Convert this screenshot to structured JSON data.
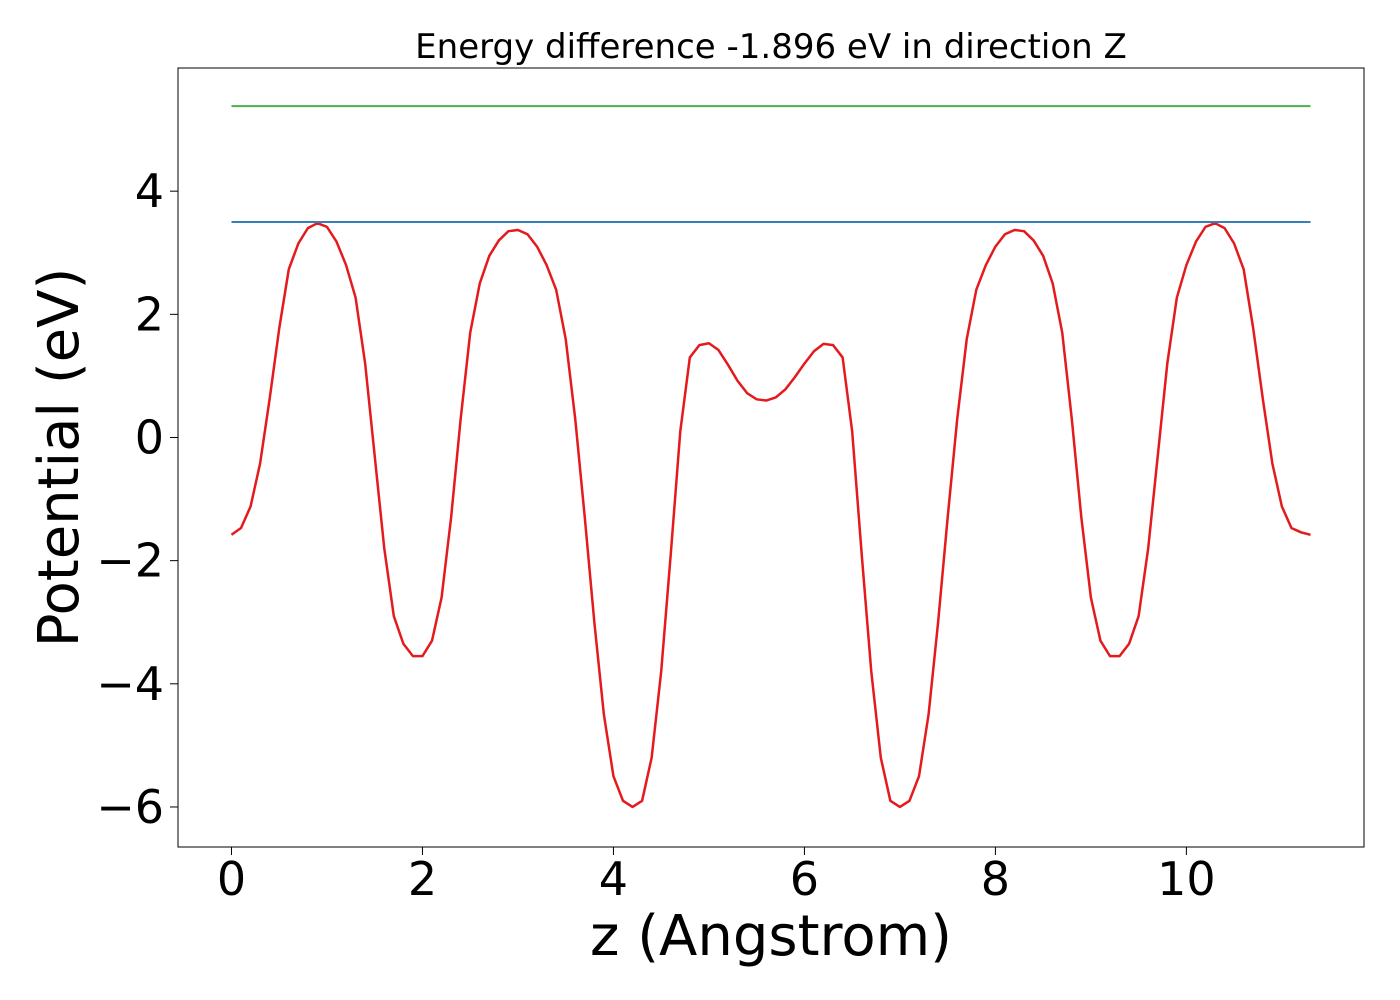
{
  "chart_data": {
    "type": "line",
    "title": "Energy difference -1.896 eV in direction Z",
    "xlabel": "z (Angstrom)",
    "ylabel": "Potential (eV)",
    "xlim": [
      -0.56,
      11.86
    ],
    "ylim": [
      -6.65,
      6.0
    ],
    "xticks": [
      0,
      2,
      4,
      6,
      8,
      10
    ],
    "yticks": [
      -6,
      -4,
      -2,
      0,
      2,
      4
    ],
    "xtick_labels": [
      "0",
      "2",
      "4",
      "6",
      "8",
      "10"
    ],
    "ytick_labels": [
      "−6",
      "−4",
      "−2",
      "0",
      "2",
      "4"
    ],
    "grid": false,
    "legend": "none",
    "series": [
      {
        "color": "#e41a1c",
        "x": [
          0.0,
          0.1,
          0.2,
          0.3,
          0.4,
          0.5,
          0.6,
          0.7,
          0.8,
          0.9,
          1.0,
          1.1,
          1.2,
          1.3,
          1.4,
          1.5,
          1.6,
          1.7,
          1.8,
          1.9,
          2.0,
          2.1,
          2.2,
          2.3,
          2.4,
          2.5,
          2.6,
          2.7,
          2.8,
          2.9,
          3.0,
          3.1,
          3.2,
          3.3,
          3.4,
          3.5,
          3.6,
          3.7,
          3.8,
          3.9,
          4.0,
          4.1,
          4.2,
          4.3,
          4.4,
          4.5,
          4.6,
          4.7,
          4.8,
          4.9,
          5.0,
          5.1,
          5.2,
          5.3,
          5.4,
          5.5,
          5.6,
          5.7,
          5.8,
          5.9,
          6.0,
          6.1,
          6.2,
          6.3,
          6.4,
          6.5,
          6.6,
          6.7,
          6.8,
          6.9,
          7.0,
          7.1,
          7.2,
          7.3,
          7.4,
          7.5,
          7.6,
          7.7,
          7.8,
          7.9,
          8.0,
          8.1,
          8.2,
          8.3,
          8.4,
          8.5,
          8.6,
          8.7,
          8.8,
          8.9,
          9.0,
          9.1,
          9.2,
          9.3,
          9.4,
          9.5,
          9.6,
          9.7,
          9.8,
          9.9,
          10.0,
          10.1,
          10.2,
          10.3,
          10.4,
          10.5,
          10.6,
          10.7,
          10.8,
          10.9,
          11.0,
          11.1,
          11.2,
          11.3
        ],
        "y": [
          -1.58,
          -1.47,
          -1.12,
          -0.42,
          0.63,
          1.77,
          2.73,
          3.15,
          3.4,
          3.48,
          3.42,
          3.18,
          2.8,
          2.27,
          1.2,
          -0.3,
          -1.8,
          -2.9,
          -3.35,
          -3.55,
          -3.55,
          -3.3,
          -2.6,
          -1.3,
          0.3,
          1.7,
          2.5,
          2.95,
          3.2,
          3.35,
          3.37,
          3.3,
          3.1,
          2.8,
          2.4,
          1.6,
          0.3,
          -1.3,
          -3.0,
          -4.5,
          -5.5,
          -5.9,
          -6.0,
          -5.9,
          -5.2,
          -3.8,
          -1.9,
          0.1,
          1.3,
          1.5,
          1.53,
          1.42,
          1.18,
          0.92,
          0.72,
          0.62,
          0.6,
          0.65,
          0.78,
          0.98,
          1.2,
          1.4,
          1.52,
          1.5,
          1.3,
          0.1,
          -1.9,
          -3.8,
          -5.2,
          -5.9,
          -6.0,
          -5.9,
          -5.5,
          -4.5,
          -3.0,
          -1.3,
          0.3,
          1.6,
          2.4,
          2.8,
          3.1,
          3.3,
          3.37,
          3.35,
          3.2,
          2.95,
          2.5,
          1.7,
          0.3,
          -1.3,
          -2.6,
          -3.3,
          -3.55,
          -3.55,
          -3.35,
          -2.9,
          -1.8,
          -0.3,
          1.2,
          2.27,
          2.8,
          3.18,
          3.42,
          3.48,
          3.4,
          3.15,
          2.73,
          1.77,
          0.63,
          -0.42,
          -1.12,
          -1.47,
          -1.54,
          -1.58
        ]
      },
      {
        "color": "#377eb8",
        "x": [
          0.0,
          11.3
        ],
        "y": [
          3.5,
          3.5
        ]
      },
      {
        "color": "#4daf4a",
        "x": [
          0.0,
          11.3
        ],
        "y": [
          5.38,
          5.38
        ]
      }
    ]
  }
}
